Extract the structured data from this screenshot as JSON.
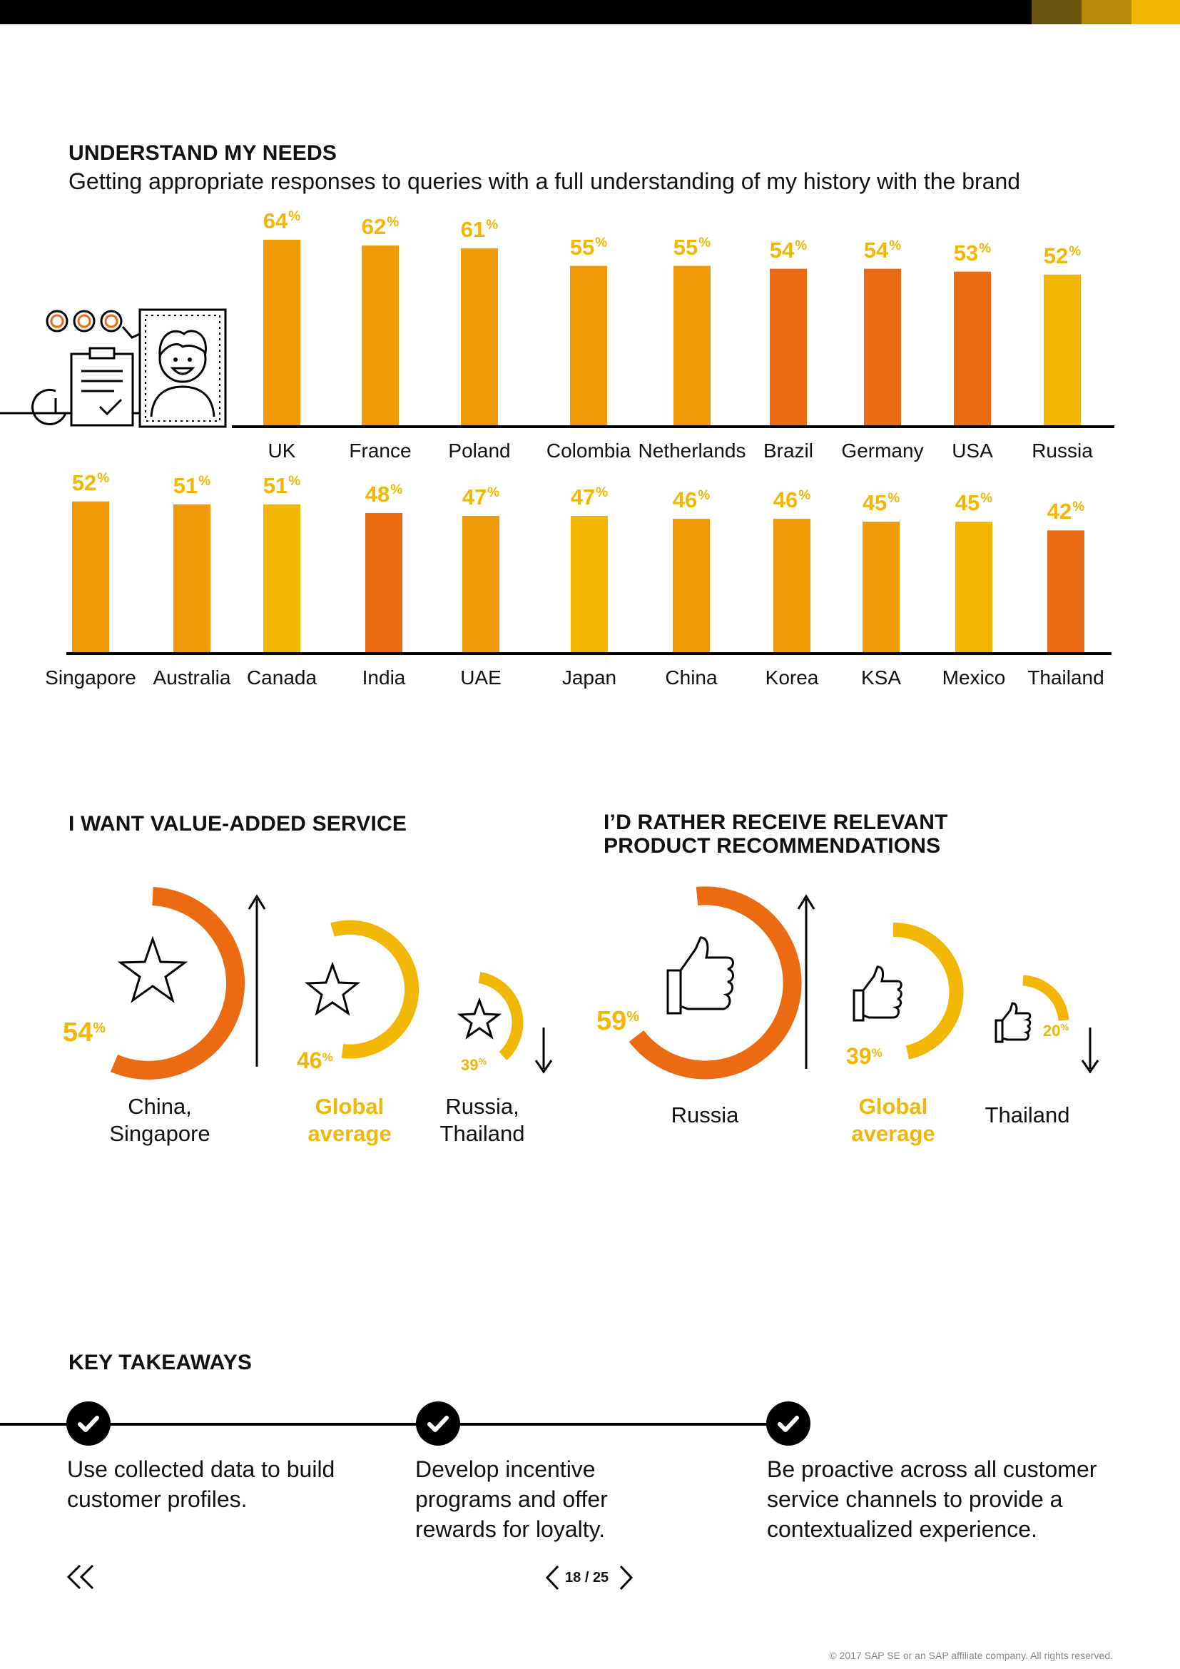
{
  "section1": {
    "title": "UNDERSTAND MY NEEDS",
    "subtitle": "Getting appropriate responses to queries with a full understanding of my history with the brand"
  },
  "chart_data": [
    {
      "type": "bar",
      "categories": [
        "UK",
        "France",
        "Poland",
        "Colombia",
        "Netherlands",
        "Brazil",
        "Germany",
        "USA",
        "Russia"
      ],
      "values": [
        64,
        62,
        61,
        55,
        55,
        54,
        54,
        53,
        52
      ],
      "colors": [
        "#f09a0a",
        "#f09a0a",
        "#f09a0a",
        "#f09a0a",
        "#f09a0a",
        "#ec6a12",
        "#ec6a12",
        "#ec6a12",
        "#f2b705"
      ],
      "unit": "%",
      "ylim": [
        0,
        64
      ]
    },
    {
      "type": "bar",
      "categories": [
        "Singapore",
        "Australia",
        "Canada",
        "India",
        "UAE",
        "Japan",
        "China",
        "Korea",
        "KSA",
        "Mexico",
        "Thailand"
      ],
      "values": [
        52,
        51,
        51,
        48,
        47,
        47,
        46,
        46,
        45,
        45,
        42
      ],
      "colors": [
        "#f09a0a",
        "#f09a0a",
        "#f2b705",
        "#ec6a12",
        "#f09a0a",
        "#f2b705",
        "#f09a0a",
        "#f09a0a",
        "#f09a0a",
        "#f2b705",
        "#ec6a12"
      ],
      "unit": "%",
      "ylim": [
        0,
        64
      ]
    }
  ],
  "value_added": {
    "title": "I WANT VALUE-ADDED SERVICE",
    "rings": [
      {
        "pct": "54",
        "unit": "%",
        "caption_line1": "China,",
        "caption_line2": "Singapore",
        "color": "#ec6a12",
        "icon": "star-icon"
      },
      {
        "pct": "46",
        "unit": "%",
        "caption_line1": "Global",
        "caption_line2": "average",
        "color": "#f2b705",
        "icon": "star-icon"
      },
      {
        "pct": "39",
        "unit": "%",
        "caption_line1": "Russia,",
        "caption_line2": "Thailand",
        "color": "#f2b705",
        "icon": "star-icon"
      }
    ]
  },
  "recommendations": {
    "title_line1": "I’D RATHER RECEIVE RELEVANT",
    "title_line2": "PRODUCT RECOMMENDATIONS",
    "rings": [
      {
        "pct": "59",
        "unit": "%",
        "caption_line1": "Russia",
        "color": "#ec6a12",
        "icon": "thumbs-up-icon"
      },
      {
        "pct": "39",
        "unit": "%",
        "caption_line1": "Global",
        "caption_line2": "average",
        "color": "#f2b705",
        "icon": "thumbs-up-icon"
      },
      {
        "pct": "20",
        "unit": "%",
        "caption_line1": "Thailand",
        "color": "#f2b705",
        "icon": "thumbs-up-icon"
      }
    ]
  },
  "takeaways": {
    "title": "KEY TAKEAWAYS",
    "items": [
      {
        "line1": "Use collected data to build",
        "line2": "customer profiles."
      },
      {
        "line1": "Develop incentive",
        "line2": "programs and offer",
        "line3": "rewards for loyalty."
      },
      {
        "line1": "Be proactive across all customer",
        "line2": "service channels to provide a",
        "line3": "contextualized experience."
      }
    ]
  },
  "pager": {
    "current": "18",
    "separator": "/",
    "total": "25"
  },
  "footer": {
    "copyright": "© 2017 SAP SE or an SAP affiliate company. All rights reserved."
  },
  "colors": {
    "orange": "#ec6a12",
    "amber": "#f09a0a",
    "gold": "#f2b705",
    "dark_gold": "#6b5410",
    "mid_gold": "#b88a0a"
  }
}
